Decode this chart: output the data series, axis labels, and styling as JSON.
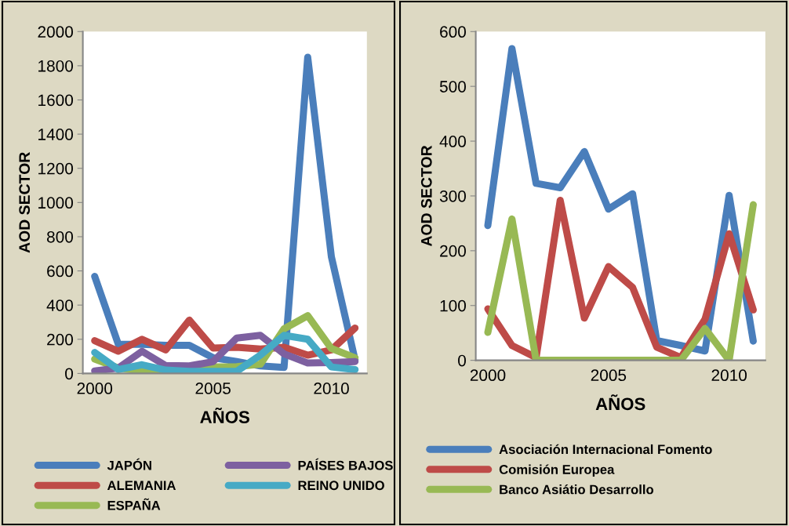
{
  "chart_data": [
    {
      "type": "line",
      "xlabel": "AÑOS",
      "ylabel": "AOD SECTOR",
      "x": [
        2000,
        2001,
        2002,
        2003,
        2004,
        2005,
        2006,
        2007,
        2008,
        2009,
        2010,
        2011
      ],
      "xlim": [
        1999.5,
        2011.5
      ],
      "xticks": [
        2000,
        2005,
        2010
      ],
      "ylim": [
        0,
        2000
      ],
      "yticks": [
        0,
        200,
        400,
        600,
        800,
        1000,
        1200,
        1400,
        1600,
        1800,
        2000
      ],
      "grid": false,
      "legend": "bottom",
      "marker": "none",
      "line_style": "solid",
      "series": [
        {
          "name": "JAPÓN",
          "color": "#4a7ebb",
          "values": [
            568,
            170,
            170,
            165,
            165,
            92,
            70,
            44,
            35,
            1850,
            683,
            80
          ]
        },
        {
          "name": "ALEMANIA",
          "color": "#be4b48",
          "values": [
            192,
            130,
            200,
            138,
            312,
            149,
            153,
            143,
            153,
            107,
            138,
            266
          ]
        },
        {
          "name": "ESPAÑA",
          "color": "#98b954",
          "values": [
            84,
            32,
            15,
            10,
            10,
            38,
            40,
            54,
            261,
            338,
            146,
            92
          ]
        },
        {
          "name": "PAÍSES BAJOS",
          "color": "#7d60a0",
          "values": [
            15,
            32,
            130,
            46,
            44,
            69,
            207,
            223,
            115,
            61,
            64,
            70
          ]
        },
        {
          "name": "REINO UNIDO",
          "color": "#46aac5",
          "values": [
            123,
            23,
            51,
            20,
            12,
            12,
            12,
            107,
            223,
            200,
            38,
            23
          ]
        }
      ]
    },
    {
      "type": "line",
      "xlabel": "AÑOS",
      "ylabel": "AOD SECTOR",
      "x": [
        2000,
        2001,
        2002,
        2003,
        2004,
        2005,
        2006,
        2007,
        2008,
        2009,
        2010,
        2011
      ],
      "xlim": [
        1999.5,
        2011.5
      ],
      "xticks": [
        2000,
        2005,
        2010
      ],
      "ylim": [
        0,
        600
      ],
      "yticks": [
        0,
        100,
        200,
        300,
        400,
        500,
        600
      ],
      "grid": false,
      "legend": "bottom",
      "marker": "none",
      "line_style": "solid",
      "series": [
        {
          "name": "Asociación Internacional Fomento",
          "color": "#4a7ebb",
          "values": [
            246,
            569,
            323,
            315,
            381,
            276,
            304,
            36,
            27,
            17,
            301,
            35
          ]
        },
        {
          "name": "Comisión Europea",
          "color": "#be4b48",
          "values": [
            94,
            27,
            5,
            292,
            77,
            171,
            133,
            24,
            5,
            75,
            231,
            92
          ]
        },
        {
          "name": "Banco Asiátio Desarrollo",
          "color": "#98b954",
          "values": [
            51,
            258,
            0,
            0,
            0,
            0,
            0,
            0,
            0,
            58,
            0,
            284
          ]
        }
      ]
    }
  ]
}
